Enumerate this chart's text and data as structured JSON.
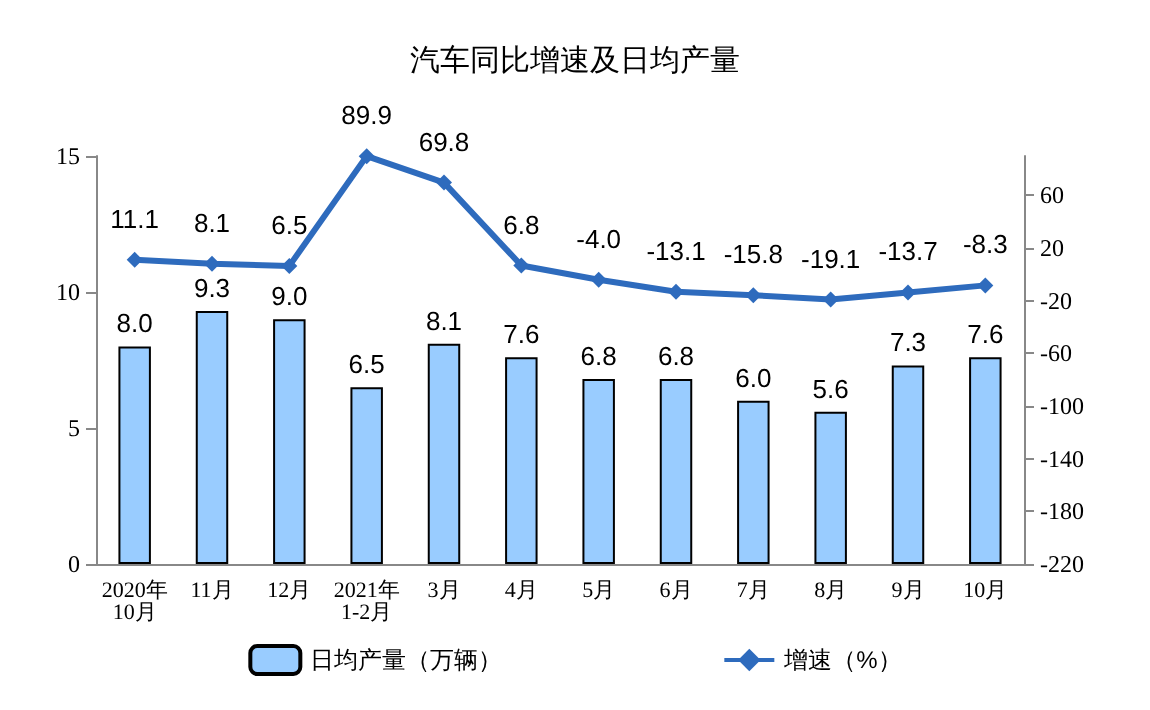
{
  "chart_data": {
    "type": "bar",
    "title": "汽车同比增速及日均产量",
    "categories": [
      "2020年\n10月",
      "11月",
      "12月",
      "2021年\n1-2月",
      "3月",
      "4月",
      "5月",
      "6月",
      "7月",
      "8月",
      "9月",
      "10月"
    ],
    "series": [
      {
        "name": "日均产量（万辆）",
        "color": "#99ccff",
        "values": [
          8.0,
          9.3,
          9.0,
          6.5,
          8.1,
          7.6,
          6.8,
          6.8,
          6.0,
          5.6,
          7.3,
          7.6
        ],
        "value_labels": [
          "8.0",
          "9.3",
          "9.0",
          "6.5",
          "8.1",
          "7.6",
          "6.8",
          "6.8",
          "6.0",
          "5.6",
          "7.3",
          "7.6"
        ]
      },
      {
        "name": "增速（%）",
        "type": "line",
        "axis": "y2",
        "color": "#2e6bbd",
        "marker": "diamond",
        "values": [
          11.1,
          8.1,
          6.5,
          89.9,
          69.8,
          6.8,
          -4.0,
          -13.1,
          -15.8,
          -19.1,
          -13.7,
          -8.3
        ],
        "value_labels": [
          "11.1",
          "8.1",
          "6.5",
          "89.9",
          "69.8",
          "6.8",
          "-4.0",
          "-13.1",
          "-15.8",
          "-19.1",
          "-13.7",
          "-8.3"
        ]
      }
    ],
    "ylim": [
      0,
      15
    ],
    "yticks": [
      0,
      5,
      10,
      15
    ],
    "y2lim": [
      -220,
      90
    ],
    "y2ticks": [
      -220,
      -180,
      -140,
      -100,
      -60,
      -20,
      20,
      60
    ],
    "grid": false,
    "legend": "bottom"
  }
}
